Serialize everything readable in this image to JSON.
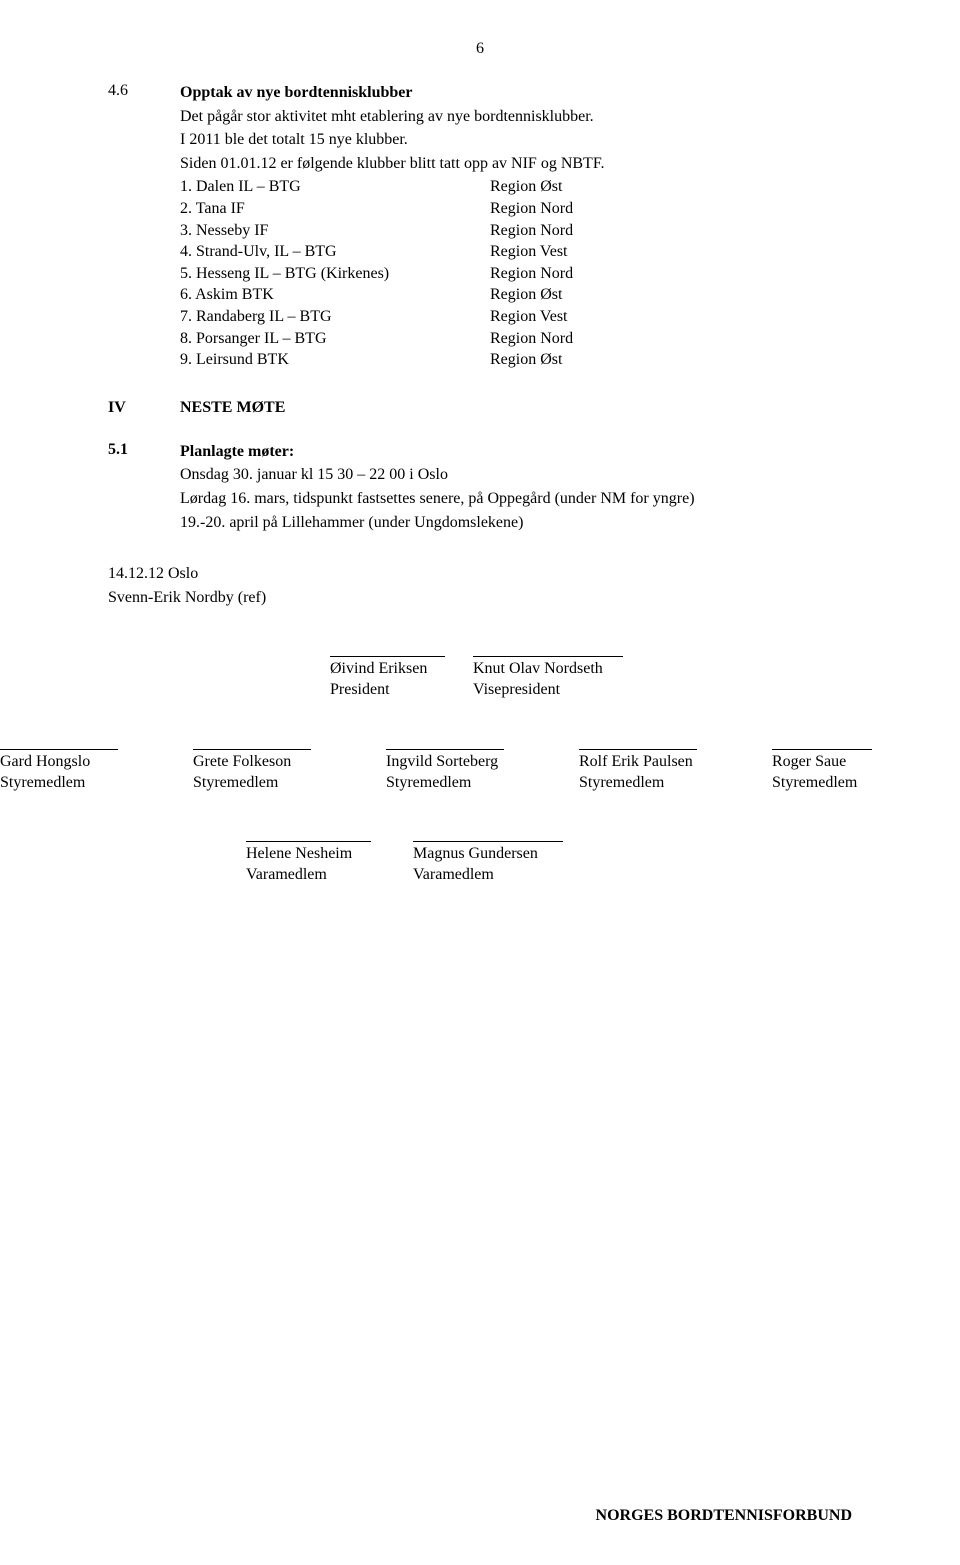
{
  "page_number": "6",
  "section_4_6": {
    "num": "4.6",
    "title": "Opptak av nye bordtennisklubber",
    "para1": "Det pågår stor aktivitet mht etablering av nye bordtennisklubber.",
    "para2": "I 2011 ble det totalt 15 nye klubber.",
    "para3": "Siden 01.01.12 er følgende klubber blitt tatt opp av NIF og NBTF.",
    "clubs": [
      {
        "n": "1.",
        "name": "Dalen IL – BTG",
        "region": "Region Øst"
      },
      {
        "n": "2.",
        "name": "Tana IF",
        "region": "Region Nord"
      },
      {
        "n": "3.",
        "name": "Nesseby IF",
        "region": "Region Nord"
      },
      {
        "n": "4.",
        "name": "Strand-Ulv, IL – BTG",
        "region": "Region Vest"
      },
      {
        "n": "5.",
        "name": "Hesseng IL – BTG (Kirkenes)",
        "region": "Region Nord"
      },
      {
        "n": "6.",
        "name": "Askim BTK",
        "region": "Region Øst"
      },
      {
        "n": "7.",
        "name": "Randaberg IL – BTG",
        "region": "Region Vest"
      },
      {
        "n": "8.",
        "name": "Porsanger IL – BTG",
        "region": "Region Nord"
      },
      {
        "n": "9.",
        "name": "Leirsund BTK",
        "region": "Region Øst"
      }
    ]
  },
  "section_iv": {
    "num": "IV",
    "title": "NESTE MØTE"
  },
  "section_5_1": {
    "num": "5.1",
    "title": "Planlagte møter:",
    "line1": "Onsdag 30. januar kl 15 30 – 22 00 i Oslo",
    "line2": "Lørdag 16. mars, tidspunkt fastsettes senere, på Oppegård (under NM for yngre)",
    "line3": "19.-20. april på Lillehammer (under Ungdomslekene)"
  },
  "dateline": {
    "date": "14.12.12  Oslo",
    "ref": "Svenn-Erik Nordby (ref)"
  },
  "signatures": {
    "row1": [
      {
        "name": "Øivind Eriksen",
        "title": "President",
        "line_w": 115
      },
      {
        "name": "Knut Olav Nordseth",
        "title": "Visepresident",
        "line_w": 150
      }
    ],
    "row2": [
      {
        "name": "Gard Hongslo",
        "title": "Styremedlem",
        "line_w": 118
      },
      {
        "name": "Grete Folkeson",
        "title": "Styremedlem",
        "line_w": 118
      },
      {
        "name": "Ingvild Sorteberg",
        "title": "Styremedlem",
        "line_w": 118
      },
      {
        "name": "Rolf Erik Paulsen",
        "title": "Styremedlem",
        "line_w": 118
      },
      {
        "name": "Roger Saue",
        "title": "Styremedlem",
        "line_w": 100
      }
    ],
    "row3": [
      {
        "name": "Helene Nesheim",
        "title": "Varamedlem",
        "line_w": 125
      },
      {
        "name": "Magnus Gundersen",
        "title": "Varamedlem",
        "line_w": 150
      }
    ]
  },
  "footer": "NORGES  BORDTENNISFORBUND"
}
